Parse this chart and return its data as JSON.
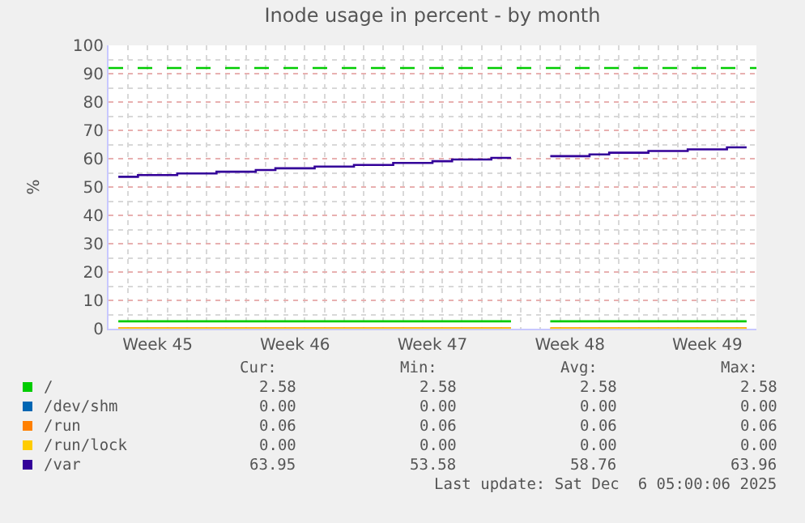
{
  "chart_data": {
    "type": "step",
    "title": "Inode usage in percent - by month",
    "ylabel": "%",
    "categories": [
      null,
      null,
      "Week 45",
      null,
      null,
      null,
      null,
      null,
      null,
      "Week 46",
      null,
      null,
      null,
      null,
      null,
      null,
      "Week 47",
      null,
      null,
      null,
      null,
      null,
      null,
      "Week 48",
      null,
      null,
      null,
      null,
      null,
      null,
      "Week 49",
      null,
      null
    ],
    "ylim": [
      0,
      100
    ],
    "yticks": [
      0,
      10,
      20,
      30,
      40,
      50,
      60,
      70,
      80,
      90,
      100
    ],
    "grid": true,
    "legend": "bottom",
    "series": [
      {
        "name": "/",
        "color": "#00cc00",
        "values": [
          2.6,
          2.6,
          2.6,
          2.6,
          2.6,
          2.6,
          2.6,
          2.6,
          2.6,
          2.6,
          2.6,
          2.6,
          2.6,
          2.6,
          2.6,
          2.6,
          2.6,
          2.6,
          2.6,
          2.6,
          2.6,
          null,
          2.6,
          2.6,
          2.6,
          2.6,
          2.6,
          2.6,
          2.6,
          2.6,
          2.6,
          2.6,
          2.6
        ]
      },
      {
        "name": "/dev/shm",
        "color": "#0066b3",
        "values": [
          null,
          null,
          null,
          null,
          null,
          null,
          null,
          null,
          null,
          null,
          null,
          null,
          null,
          null,
          null,
          null,
          null,
          null,
          null,
          null,
          null,
          null,
          null,
          null,
          null,
          null,
          null,
          null,
          null,
          null,
          null,
          null,
          null
        ]
      },
      {
        "name": "/run",
        "color": "#ff8000",
        "values": [
          0.1,
          0.1,
          0.1,
          0.1,
          0.1,
          0.1,
          0.1,
          0.1,
          0.1,
          0.1,
          0.1,
          0.1,
          0.1,
          0.1,
          0.1,
          0.1,
          0.1,
          0.1,
          0.1,
          0.1,
          0.1,
          null,
          0.1,
          0.1,
          0.1,
          0.1,
          0.1,
          0.1,
          0.1,
          0.1,
          0.1,
          0.1,
          0.1
        ]
      },
      {
        "name": "/run/lock",
        "color": "#ffcc00",
        "values": [
          0,
          0,
          0,
          0,
          0,
          0,
          0,
          0,
          0,
          0,
          0,
          0,
          0,
          0,
          0,
          0,
          0,
          0,
          0,
          0,
          0,
          null,
          0,
          0,
          0,
          0,
          0,
          0,
          0,
          0,
          0,
          0,
          0
        ]
      },
      {
        "name": "/var",
        "color": "#330099",
        "values": [
          53.6,
          54.2,
          54.2,
          54.8,
          54.8,
          55.4,
          55.4,
          56.0,
          56.6,
          56.6,
          57.2,
          57.2,
          57.8,
          57.8,
          58.5,
          58.5,
          59.1,
          59.7,
          59.7,
          60.3,
          60.3,
          null,
          60.9,
          60.9,
          61.5,
          62.1,
          62.1,
          62.7,
          62.7,
          63.3,
          63.3,
          64.0,
          64.0
        ]
      }
    ],
    "ref_lines": [
      {
        "axis": "y",
        "value": 92,
        "color": "#00cc00",
        "line_style": "dashed"
      }
    ],
    "annotations": [
      "Cur:",
      "Min:",
      "Avg:",
      "Max:",
      "2.58",
      "2.58",
      "2.58",
      "2.58",
      "0.00",
      "0.00",
      "0.00",
      "0.00",
      "0.06",
      "0.06",
      "0.06",
      "0.06",
      "0.00",
      "0.00",
      "0.00",
      "0.00",
      "63.95",
      "53.58",
      "58.76",
      "63.96",
      "Last update: Sat Dec  6 05:00:06 2025"
    ]
  }
}
